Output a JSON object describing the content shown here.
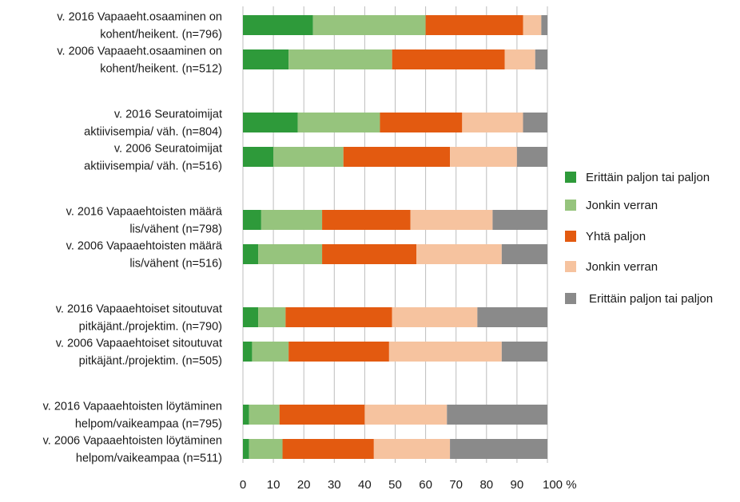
{
  "chart_data": {
    "type": "bar",
    "orientation": "horizontal",
    "stacked": true,
    "categories": [
      [
        "v. 2016 Vapaaeht.osaaminen on",
        "kohent/heikent. (n=796)"
      ],
      [
        "v. 2006 Vapaaeht.osaaminen on",
        "kohent/heikent. (n=512)"
      ],
      [
        "v. 2016 Seuratoimijat",
        "aktiivisempia/ väh. (n=804)"
      ],
      [
        "v. 2006 Seuratoimijat",
        "aktiivisempia/ väh. (n=516)"
      ],
      [
        "v. 2016 Vapaaehtoisten määrä",
        "lis/vähent (n=798)"
      ],
      [
        "v. 2006 Vapaaehtoisten määrä",
        "lis/vähent (n=516)"
      ],
      [
        "v. 2016 Vapaaehtoiset sitoutuvat",
        "pitkäjänt./projektim. (n=790)"
      ],
      [
        "v. 2006 Vapaaehtoiset sitoutuvat",
        "pitkäjänt./projektim. (n=505)"
      ],
      [
        "v. 2016 Vapaaehtoisten löytäminen",
        "helpom/vaikeampaa (n=795)"
      ],
      [
        "v. 2006 Vapaaehtoisten löytäminen",
        "helpom/vaikeampaa (n=511)"
      ]
    ],
    "series": [
      {
        "name": "Erittäin paljon tai paljon",
        "color": "#2e9a3a",
        "values": [
          23,
          15,
          18,
          10,
          6,
          5,
          5,
          3,
          2,
          2
        ]
      },
      {
        "name": "Jonkin verran",
        "color": "#96c47d",
        "values": [
          37,
          34,
          27,
          23,
          20,
          21,
          9,
          12,
          10,
          11
        ]
      },
      {
        "name": "Yhtä paljon",
        "color": "#e35a10",
        "values": [
          32,
          37,
          27,
          35,
          29,
          31,
          35,
          33,
          28,
          30
        ]
      },
      {
        "name": "Jonkin verran",
        "color": "#f6c39f",
        "values": [
          6,
          10,
          20,
          22,
          27,
          28,
          28,
          37,
          27,
          25
        ]
      },
      {
        "name": "Erittäin paljon tai paljon",
        "color": "#8a8a8a",
        "values": [
          2,
          4,
          8,
          10,
          18,
          15,
          23,
          15,
          33,
          32
        ]
      }
    ],
    "xticks": [
      "0",
      "10",
      "20",
      "30",
      "40",
      "50",
      "60",
      "70",
      "80",
      "90",
      "100 %"
    ],
    "xlim": [
      0,
      100
    ],
    "grid": true,
    "legend_position": "right"
  }
}
